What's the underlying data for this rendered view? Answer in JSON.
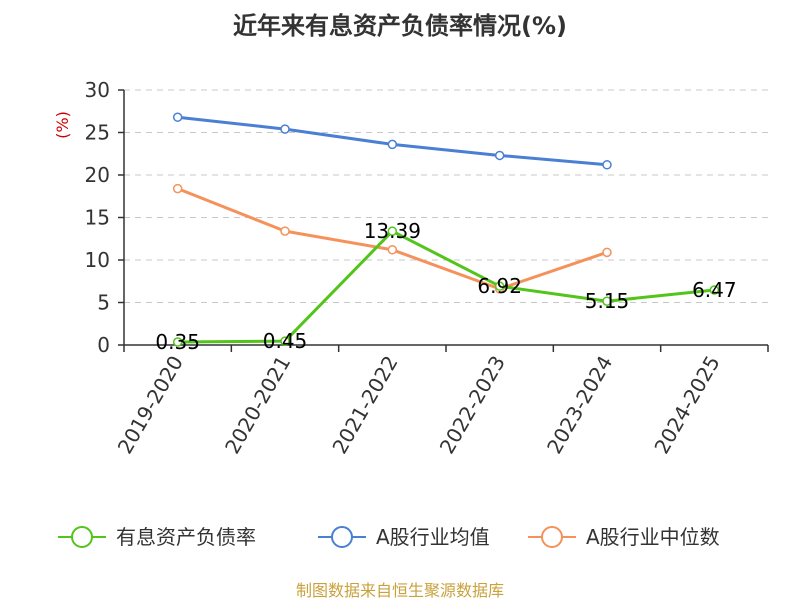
{
  "chart_data": {
    "type": "line",
    "title": "近年来有息资产负债率情况(%)",
    "ylabel": "(%)",
    "xlabel": "",
    "categories": [
      "2019-2020",
      "2020-2021",
      "2021-2022",
      "2022-2023",
      "2023-2024",
      "2024-2025"
    ],
    "ylim": [
      0,
      30
    ],
    "yticks": [
      0,
      5,
      10,
      15,
      20,
      25,
      30
    ],
    "grid": true,
    "legend_position": "bottom",
    "series": [
      {
        "name": "有息资产负债率",
        "color": "#52c41a",
        "values": [
          0.35,
          0.45,
          13.39,
          6.92,
          5.15,
          6.47
        ],
        "labels": [
          "0.35",
          "0.45",
          "13.39",
          "6.92",
          "5.15",
          "6.47"
        ]
      },
      {
        "name": "A股行业均值",
        "color": "#4a7fd4",
        "values": [
          26.8,
          25.4,
          23.6,
          22.3,
          21.2,
          null
        ]
      },
      {
        "name": "A股行业中位数",
        "color": "#f5915a",
        "values": [
          18.4,
          13.4,
          11.2,
          6.6,
          10.9,
          null
        ]
      }
    ]
  },
  "source": "制图数据来自恒生聚源数据库"
}
